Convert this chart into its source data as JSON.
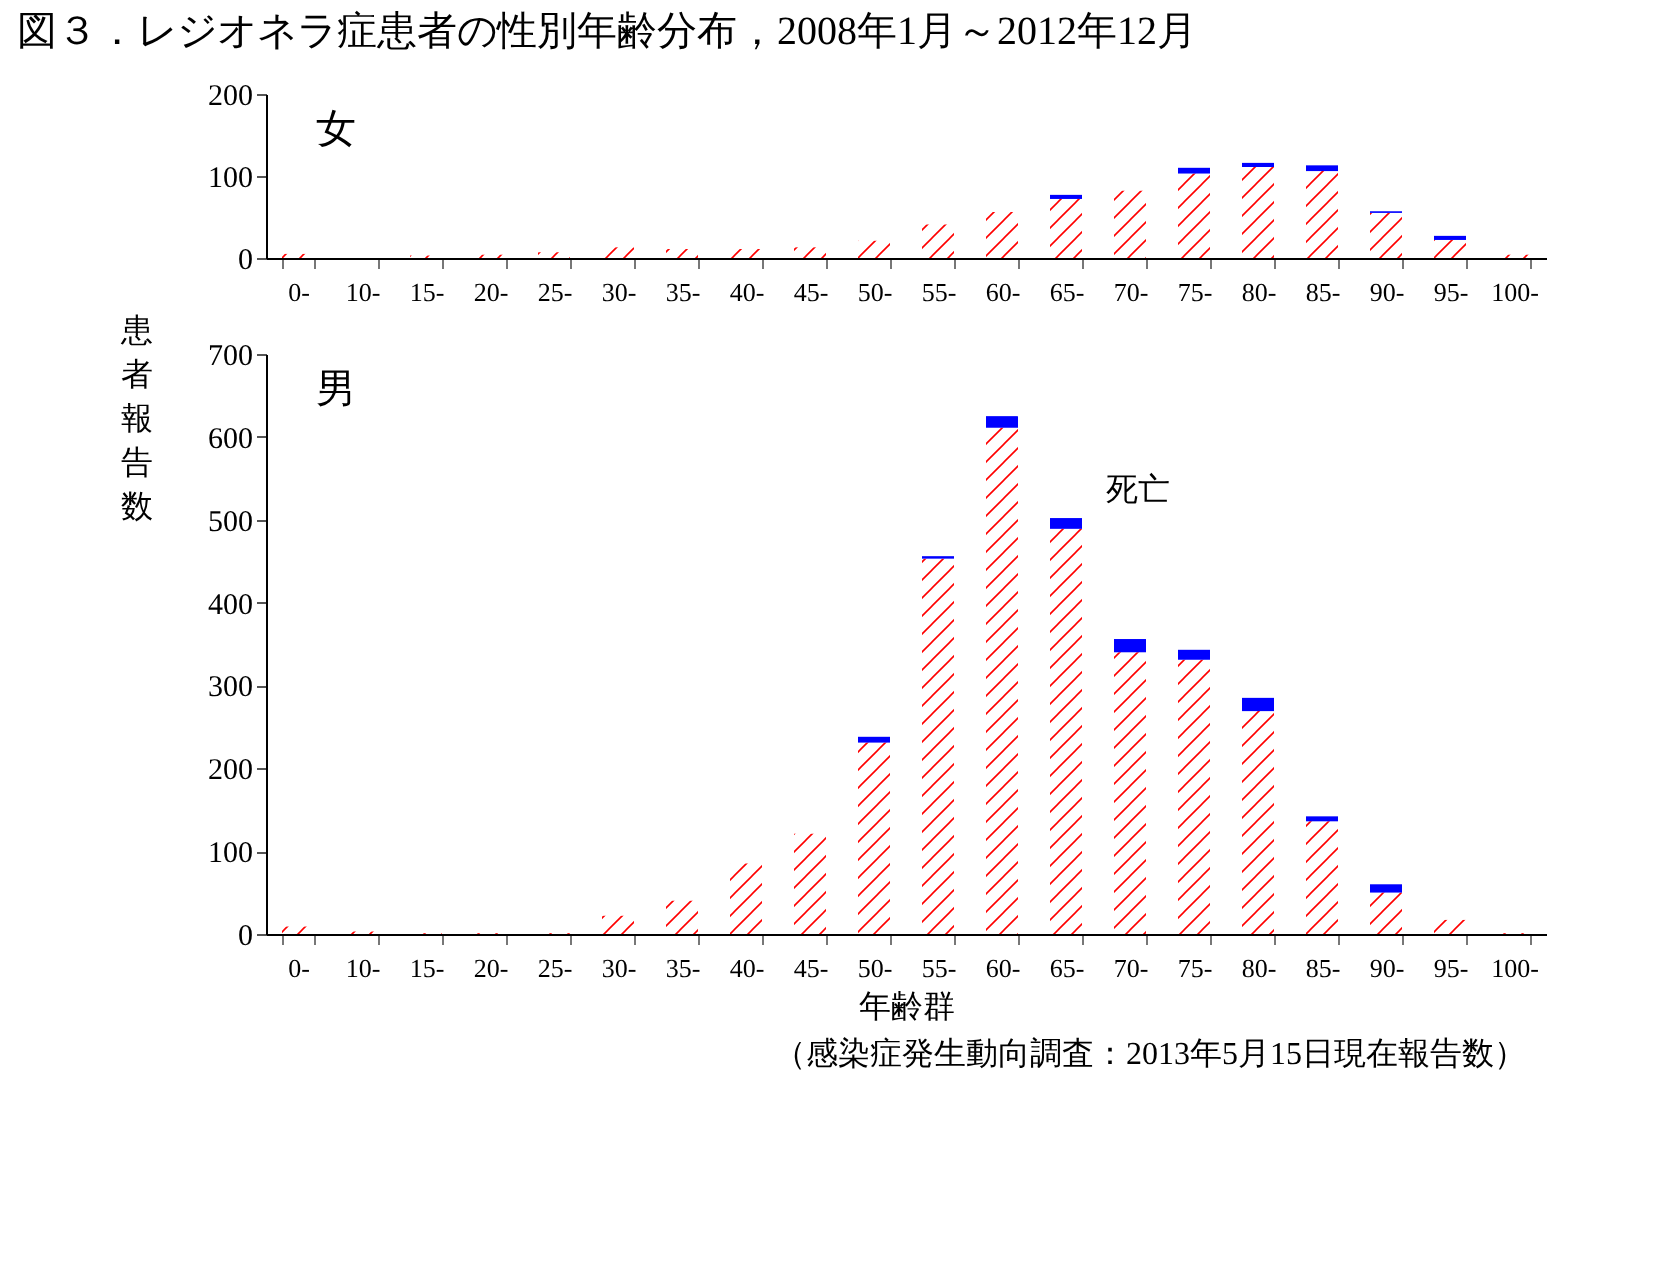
{
  "chart_data": [
    {
      "type": "bar",
      "title": "図３．レジオネラ症患者の性別年齢分布，2008年1月～2012年12月",
      "annotations": [
        "女"
      ],
      "stacked": true,
      "categories": [
        "0-",
        "10-",
        "15-",
        "20-",
        "25-",
        "30-",
        "35-",
        "40-",
        "45-",
        "50-",
        "55-",
        "60-",
        "65-",
        "70-",
        "75-",
        "80-",
        "85-",
        "90-",
        "95-",
        "100-"
      ],
      "ylim": [
        0,
        200
      ],
      "yticks": [
        0,
        100,
        200
      ],
      "series": [
        {
          "color": "#ff0000",
          "values": [
            5,
            0,
            3,
            4,
            7,
            13,
            11,
            11,
            13,
            21,
            41,
            56,
            72,
            82,
            103,
            111,
            106,
            55,
            22,
            4
          ]
        },
        {
          "color": "#0000ff",
          "values": [
            0,
            0,
            0,
            0,
            0,
            0,
            0,
            0,
            0,
            0,
            0,
            0,
            5,
            0,
            7,
            5,
            7,
            2,
            5,
            0
          ]
        }
      ]
    },
    {
      "type": "bar",
      "ylabel": "患者報告数",
      "xlabel": "年齢群",
      "stacked": true,
      "annotations": [
        "男",
        {
          "text": "死亡",
          "x": "65-",
          "y": 502
        },
        "（感染症発生動向調査：2013年5月15日現在報告数）"
      ],
      "categories": [
        "0-",
        "10-",
        "15-",
        "20-",
        "25-",
        "30-",
        "35-",
        "40-",
        "45-",
        "50-",
        "55-",
        "60-",
        "65-",
        "70-",
        "75-",
        "80-",
        "85-",
        "90-",
        "95-",
        "100-"
      ],
      "ylim": [
        0,
        700
      ],
      "yticks": [
        0,
        100,
        200,
        300,
        400,
        500,
        600,
        700
      ],
      "series": [
        {
          "color": "#ff0000",
          "values": [
            9,
            3,
            1,
            1,
            1,
            22,
            40,
            85,
            121,
            231,
            453,
            611,
            489,
            340,
            331,
            269,
            136,
            50,
            17,
            1
          ]
        },
        {
          "color": "#0000ff",
          "values": [
            0,
            0,
            0,
            0,
            0,
            0,
            0,
            0,
            0,
            7,
            3,
            14,
            13,
            16,
            12,
            16,
            6,
            10,
            0,
            0
          ]
        }
      ]
    }
  ]
}
